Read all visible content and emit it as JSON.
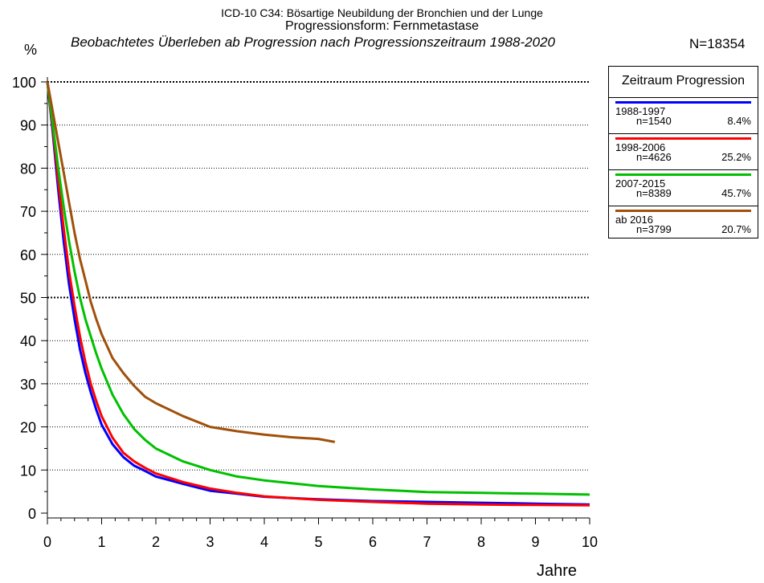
{
  "header": {
    "line1": "ICD-10 C34: Bösartige Neubildung der Bronchien und der Lunge",
    "line2": "Progressionsform: Fernmetastase",
    "subtitle": "Beobachtetes Überleben ab Progression nach Progressionszeitraum 1988-2020",
    "total": "N=18354"
  },
  "chart_data": {
    "type": "line",
    "title": "ICD-10 C34: Bösartige Neubildung der Bronchien und der Lunge",
    "subtitle": "Beobachtetes Überleben ab Progression nach Progressionszeitraum 1988-2020",
    "xlabel": "Jahre",
    "ylabel": "%",
    "xlim": [
      0,
      10
    ],
    "ylim": [
      0,
      100
    ],
    "xticks": [
      0,
      1,
      2,
      3,
      4,
      5,
      6,
      7,
      8,
      9,
      10
    ],
    "yticks": [
      0,
      10,
      20,
      30,
      40,
      50,
      60,
      70,
      80,
      90,
      100
    ],
    "grid": "horizontal dotted",
    "legend_position": "right",
    "legend_title": "Zeitraum Progression",
    "series": [
      {
        "name": "1988-1997",
        "n": "n=1540",
        "share": "8.4%",
        "color": "#0000ff",
        "x": [
          0,
          0.1,
          0.2,
          0.3,
          0.4,
          0.5,
          0.6,
          0.7,
          0.8,
          0.9,
          1.0,
          1.2,
          1.4,
          1.6,
          1.8,
          2.0,
          2.5,
          3.0,
          3.5,
          4.0,
          5.0,
          6.0,
          7.0,
          8.0,
          9.0,
          10.0
        ],
        "y": [
          100,
          88,
          75,
          63,
          53,
          45,
          38,
          32.5,
          28,
          24,
          20.5,
          16,
          13,
          11,
          9.8,
          8.5,
          6.8,
          5.2,
          4.5,
          3.8,
          3.2,
          2.8,
          2.6,
          2.4,
          2.2,
          2.0
        ]
      },
      {
        "name": "1998-2006",
        "n": "n=4626",
        "share": "25.2%",
        "color": "#ff0000",
        "x": [
          0,
          0.1,
          0.2,
          0.3,
          0.4,
          0.5,
          0.6,
          0.7,
          0.8,
          0.9,
          1.0,
          1.2,
          1.4,
          1.6,
          1.8,
          2.0,
          2.5,
          3.0,
          3.5,
          4.0,
          5.0,
          6.0,
          7.0,
          8.0,
          9.0,
          10.0
        ],
        "y": [
          100,
          89,
          77,
          66,
          56,
          48,
          41,
          35,
          30,
          26,
          22.5,
          17.5,
          14,
          12,
          10.5,
          9.2,
          7.2,
          5.7,
          4.7,
          3.9,
          3.1,
          2.6,
          2.2,
          2.0,
          1.9,
          1.8
        ]
      },
      {
        "name": "2007-2015",
        "n": "n=8389",
        "share": "45.7%",
        "color": "#00c000",
        "x": [
          0,
          0.1,
          0.2,
          0.3,
          0.4,
          0.5,
          0.6,
          0.7,
          0.8,
          0.9,
          1.0,
          1.2,
          1.4,
          1.6,
          1.8,
          2.0,
          2.5,
          3.0,
          3.5,
          4.0,
          5.0,
          6.0,
          7.0,
          8.0,
          9.0,
          10.0
        ],
        "y": [
          100,
          90,
          80,
          71,
          63,
          56,
          50,
          45,
          41,
          37,
          33.5,
          27.5,
          23,
          19.5,
          17,
          15,
          12,
          10,
          8.5,
          7.6,
          6.3,
          5.5,
          4.9,
          4.7,
          4.5,
          4.3
        ]
      },
      {
        "name": "ab 2016",
        "n": "n=3799",
        "share": "20.7%",
        "color": "#a0500a",
        "x": [
          0,
          0.1,
          0.2,
          0.3,
          0.4,
          0.5,
          0.6,
          0.7,
          0.8,
          0.9,
          1.0,
          1.2,
          1.4,
          1.6,
          1.8,
          2.0,
          2.5,
          3.0,
          3.5,
          4.0,
          4.5,
          5.0,
          5.3
        ],
        "y": [
          100,
          93,
          86,
          79,
          72,
          65,
          59,
          54,
          49,
          45,
          41.5,
          36,
          32.5,
          29.5,
          27,
          25.5,
          22.5,
          20,
          19,
          18.2,
          17.6,
          17.2,
          16.5
        ]
      }
    ]
  }
}
